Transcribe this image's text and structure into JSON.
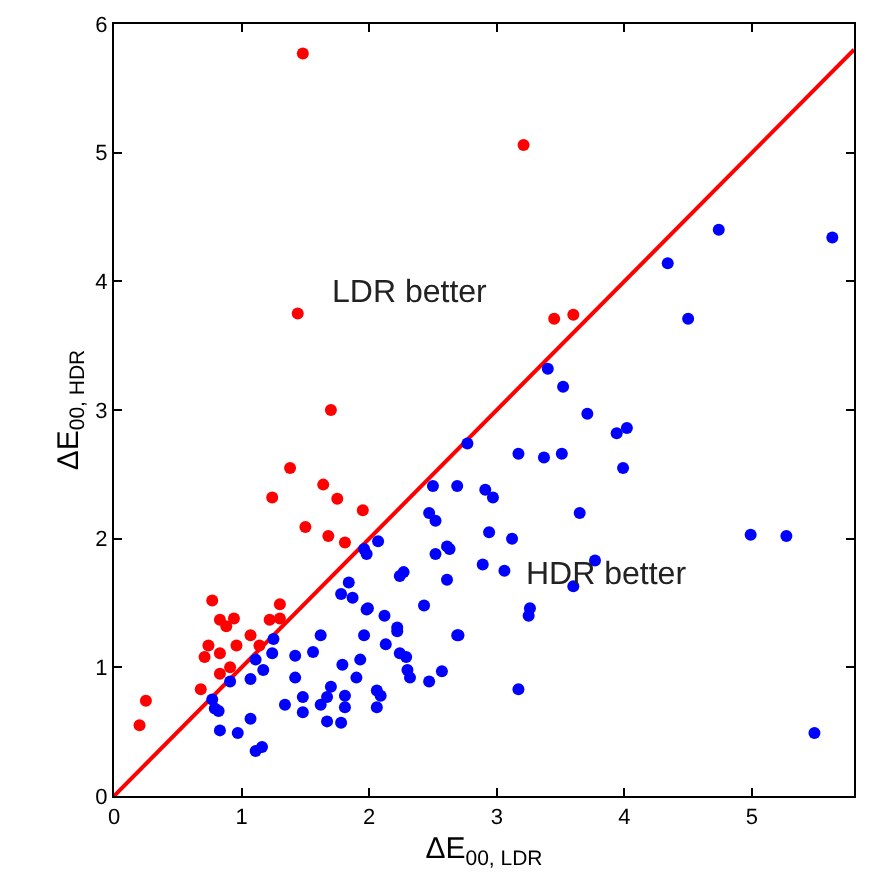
{
  "chart_data": {
    "type": "scatter",
    "xlabel": "ΔE$_{00, LDR}$",
    "ylabel": "ΔE$_{00, HDR}$",
    "xlim": [
      0,
      5.8
    ],
    "ylim": [
      0,
      6
    ],
    "xticks": [
      0,
      1,
      2,
      3,
      4,
      5
    ],
    "yticks": [
      0,
      1,
      2,
      3,
      4,
      5,
      6
    ],
    "marker": "circle",
    "annotations": [
      "LDR better",
      "HDR better"
    ],
    "series": [
      {
        "type": "line",
        "color": "#ff0000",
        "x": [
          0,
          5.8
        ],
        "values": [
          0,
          5.8
        ],
        "marker": "none",
        "line_style": "solid"
      },
      {
        "color": "#ff0000",
        "x": [
          1.48,
          3.21,
          1.44,
          3.45,
          3.6,
          1.24,
          1.64,
          1.75,
          1.95,
          1.5,
          1.68,
          1.81,
          0.77,
          0.83,
          0.88,
          0.94,
          1.3,
          1.22,
          1.3,
          1.07,
          0.74,
          0.71,
          0.83,
          0.96,
          1.14,
          0.91,
          0.83,
          0.68,
          0.25,
          0.2,
          1.38,
          1.7
        ],
        "values": [
          5.77,
          5.06,
          3.75,
          3.71,
          3.74,
          2.32,
          2.42,
          2.31,
          2.22,
          2.09,
          2.02,
          1.97,
          1.52,
          1.37,
          1.32,
          1.38,
          1.49,
          1.37,
          1.38,
          1.25,
          1.17,
          1.08,
          1.11,
          1.17,
          1.17,
          1.0,
          0.95,
          0.83,
          0.74,
          0.55,
          2.55,
          3.0
        ]
      },
      {
        "color": "#0000ff",
        "x": [
          3.4,
          3.52,
          3.71,
          2.77,
          3.17,
          3.37,
          3.51,
          2.5,
          2.69,
          2.91,
          2.97,
          2.47,
          2.52,
          3.65,
          2.07,
          1.96,
          1.98,
          2.61,
          2.63,
          2.94,
          3.12,
          2.52,
          2.89,
          3.06,
          2.61,
          3.77,
          3.6,
          1.84,
          1.78,
          1.87,
          2.27,
          2.24,
          1.98,
          1.99,
          2.43,
          2.12,
          2.22,
          2.22,
          2.69,
          2.7,
          3.26,
          3.25,
          1.62,
          1.96,
          1.56,
          2.13,
          1.93,
          1.79,
          2.24,
          2.29,
          2.3,
          2.32,
          1.9,
          2.57,
          2.47,
          3.17,
          1.7,
          1.67,
          1.62,
          1.48,
          1.48,
          1.81,
          1.81,
          2.06,
          2.09,
          2.06,
          1.67,
          1.78,
          1.25,
          1.24,
          1.11,
          1.17,
          1.07,
          0.91,
          1.42,
          1.42,
          0.77,
          0.79,
          0.82,
          0.83,
          0.97,
          1.07,
          1.11,
          1.16,
          1.34,
          4.74,
          5.63,
          4.34,
          4.5,
          3.94,
          4.02,
          3.99,
          4.99,
          5.27,
          5.49
        ],
        "values": [
          3.32,
          3.18,
          2.97,
          2.74,
          2.66,
          2.63,
          2.66,
          2.41,
          2.41,
          2.38,
          2.32,
          2.2,
          2.14,
          2.2,
          1.98,
          1.92,
          1.88,
          1.94,
          1.92,
          2.05,
          2.0,
          1.88,
          1.8,
          1.75,
          1.68,
          1.83,
          1.63,
          1.66,
          1.57,
          1.54,
          1.74,
          1.71,
          1.45,
          1.46,
          1.48,
          1.4,
          1.31,
          1.28,
          1.25,
          1.25,
          1.46,
          1.4,
          1.25,
          1.25,
          1.12,
          1.18,
          1.06,
          1.02,
          1.11,
          1.08,
          0.98,
          0.92,
          0.92,
          0.97,
          0.89,
          0.83,
          0.85,
          0.77,
          0.71,
          0.77,
          0.65,
          0.78,
          0.69,
          0.82,
          0.78,
          0.69,
          0.58,
          0.57,
          1.22,
          1.11,
          1.06,
          0.98,
          0.91,
          0.89,
          1.09,
          0.92,
          0.75,
          0.68,
          0.66,
          0.51,
          0.49,
          0.6,
          0.35,
          0.38,
          0.71,
          4.4,
          4.34,
          4.14,
          3.71,
          2.82,
          2.86,
          2.55,
          2.03,
          2.02,
          0.49
        ]
      }
    ]
  }
}
